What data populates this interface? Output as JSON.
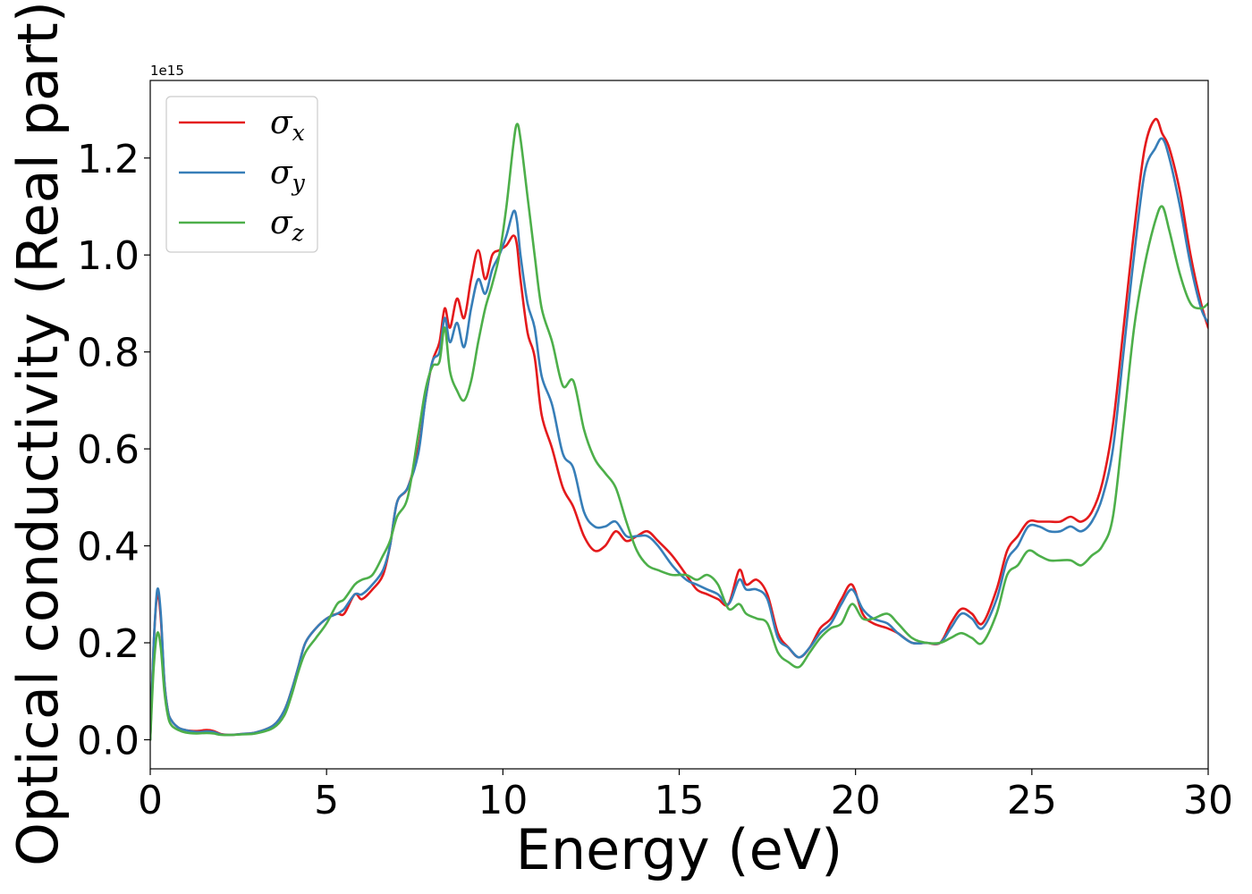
{
  "chart_data": {
    "type": "line",
    "xlabel": "Energy (eV)",
    "ylabel": "Optical conductivity (Real part)",
    "y_offset_label": "1e15",
    "xlim": [
      0,
      30
    ],
    "ylim": [
      -0.06,
      1.36
    ],
    "x_ticks": [
      0,
      5,
      10,
      15,
      20,
      25,
      30
    ],
    "x_tick_labels": [
      "0",
      "5",
      "10",
      "15",
      "20",
      "25",
      "30"
    ],
    "y_ticks": [
      0.0,
      0.2,
      0.4,
      0.6,
      0.8,
      1.0,
      1.2
    ],
    "y_tick_labels": [
      "0.0",
      "0.2",
      "0.4",
      "0.6",
      "0.8",
      "1.0",
      "1.2"
    ],
    "grid": false,
    "legend_position": "top-left",
    "x": [
      0.0,
      0.1,
      0.2,
      0.3,
      0.4,
      0.5,
      0.6,
      0.8,
      1.0,
      1.3,
      1.6,
      1.8,
      2.0,
      2.3,
      2.6,
      3.0,
      3.5,
      3.8,
      4.0,
      4.2,
      4.4,
      4.7,
      5.0,
      5.3,
      5.5,
      5.8,
      6.0,
      6.3,
      6.6,
      6.8,
      7.0,
      7.3,
      7.6,
      7.8,
      8.0,
      8.2,
      8.35,
      8.5,
      8.7,
      8.9,
      9.1,
      9.3,
      9.5,
      9.7,
      9.9,
      10.1,
      10.3,
      10.4,
      10.5,
      10.7,
      10.9,
      11.1,
      11.4,
      11.7,
      12.0,
      12.3,
      12.6,
      12.9,
      13.2,
      13.5,
      13.8,
      14.1,
      14.4,
      14.8,
      15.2,
      15.5,
      15.8,
      16.1,
      16.4,
      16.7,
      16.9,
      17.2,
      17.5,
      17.8,
      18.1,
      18.4,
      18.7,
      19.0,
      19.3,
      19.6,
      19.9,
      20.2,
      20.5,
      20.9,
      21.2,
      21.6,
      22.0,
      22.4,
      22.7,
      23.0,
      23.3,
      23.6,
      24.0,
      24.3,
      24.6,
      24.9,
      25.2,
      25.5,
      25.8,
      26.1,
      26.4,
      26.7,
      27.0,
      27.3,
      27.6,
      27.9,
      28.2,
      28.5,
      28.7,
      28.9,
      29.2,
      29.5,
      29.8,
      30.0
    ],
    "series": [
      {
        "name": "σx",
        "color": "#e41a1c",
        "values": [
          0.0,
          0.2,
          0.3,
          0.25,
          0.12,
          0.06,
          0.04,
          0.025,
          0.02,
          0.018,
          0.02,
          0.018,
          0.012,
          0.01,
          0.012,
          0.015,
          0.03,
          0.06,
          0.1,
          0.15,
          0.2,
          0.23,
          0.25,
          0.26,
          0.26,
          0.3,
          0.29,
          0.31,
          0.34,
          0.4,
          0.49,
          0.52,
          0.6,
          0.7,
          0.78,
          0.82,
          0.89,
          0.85,
          0.91,
          0.87,
          0.95,
          1.01,
          0.95,
          1.0,
          1.01,
          1.02,
          1.04,
          1.02,
          0.95,
          0.84,
          0.79,
          0.67,
          0.6,
          0.52,
          0.48,
          0.42,
          0.39,
          0.4,
          0.43,
          0.41,
          0.42,
          0.43,
          0.41,
          0.38,
          0.34,
          0.31,
          0.3,
          0.29,
          0.28,
          0.35,
          0.32,
          0.33,
          0.3,
          0.22,
          0.19,
          0.17,
          0.19,
          0.23,
          0.25,
          0.29,
          0.32,
          0.26,
          0.24,
          0.23,
          0.22,
          0.2,
          0.2,
          0.2,
          0.24,
          0.27,
          0.26,
          0.24,
          0.31,
          0.39,
          0.42,
          0.45,
          0.45,
          0.45,
          0.45,
          0.46,
          0.45,
          0.47,
          0.53,
          0.65,
          0.85,
          1.05,
          1.22,
          1.28,
          1.25,
          1.22,
          1.13,
          1.0,
          0.9,
          0.85
        ]
      },
      {
        "name": "σy",
        "color": "#377eb8",
        "values": [
          0.0,
          0.2,
          0.31,
          0.26,
          0.12,
          0.06,
          0.04,
          0.025,
          0.02,
          0.016,
          0.017,
          0.016,
          0.011,
          0.01,
          0.012,
          0.015,
          0.03,
          0.06,
          0.1,
          0.15,
          0.2,
          0.23,
          0.25,
          0.26,
          0.27,
          0.3,
          0.3,
          0.32,
          0.35,
          0.4,
          0.49,
          0.52,
          0.59,
          0.7,
          0.78,
          0.8,
          0.87,
          0.82,
          0.86,
          0.81,
          0.89,
          0.95,
          0.92,
          0.97,
          1.0,
          1.04,
          1.09,
          1.07,
          1.0,
          0.9,
          0.85,
          0.75,
          0.69,
          0.59,
          0.56,
          0.47,
          0.44,
          0.44,
          0.45,
          0.42,
          0.42,
          0.42,
          0.4,
          0.36,
          0.33,
          0.32,
          0.31,
          0.3,
          0.28,
          0.33,
          0.31,
          0.31,
          0.29,
          0.21,
          0.19,
          0.17,
          0.19,
          0.22,
          0.24,
          0.28,
          0.31,
          0.27,
          0.25,
          0.24,
          0.22,
          0.2,
          0.2,
          0.2,
          0.23,
          0.26,
          0.25,
          0.23,
          0.29,
          0.37,
          0.4,
          0.44,
          0.44,
          0.43,
          0.43,
          0.44,
          0.43,
          0.45,
          0.5,
          0.6,
          0.8,
          1.0,
          1.17,
          1.22,
          1.24,
          1.2,
          1.1,
          0.98,
          0.89,
          0.86
        ]
      },
      {
        "name": "σz",
        "color": "#4daf4a",
        "values": [
          0.0,
          0.15,
          0.22,
          0.19,
          0.1,
          0.05,
          0.03,
          0.02,
          0.015,
          0.013,
          0.014,
          0.013,
          0.01,
          0.01,
          0.011,
          0.013,
          0.025,
          0.05,
          0.09,
          0.14,
          0.18,
          0.21,
          0.24,
          0.28,
          0.29,
          0.32,
          0.33,
          0.34,
          0.38,
          0.41,
          0.46,
          0.5,
          0.63,
          0.72,
          0.77,
          0.78,
          0.85,
          0.76,
          0.72,
          0.7,
          0.74,
          0.82,
          0.89,
          0.94,
          1.0,
          1.1,
          1.23,
          1.27,
          1.24,
          1.12,
          1.0,
          0.89,
          0.82,
          0.73,
          0.74,
          0.64,
          0.58,
          0.55,
          0.52,
          0.45,
          0.39,
          0.36,
          0.35,
          0.34,
          0.34,
          0.33,
          0.34,
          0.32,
          0.27,
          0.28,
          0.26,
          0.25,
          0.24,
          0.18,
          0.16,
          0.15,
          0.18,
          0.21,
          0.23,
          0.24,
          0.28,
          0.25,
          0.25,
          0.26,
          0.24,
          0.21,
          0.2,
          0.2,
          0.21,
          0.22,
          0.21,
          0.2,
          0.26,
          0.34,
          0.36,
          0.39,
          0.38,
          0.37,
          0.37,
          0.37,
          0.36,
          0.38,
          0.4,
          0.46,
          0.65,
          0.85,
          0.98,
          1.07,
          1.1,
          1.05,
          0.96,
          0.9,
          0.89,
          0.9
        ]
      }
    ]
  }
}
